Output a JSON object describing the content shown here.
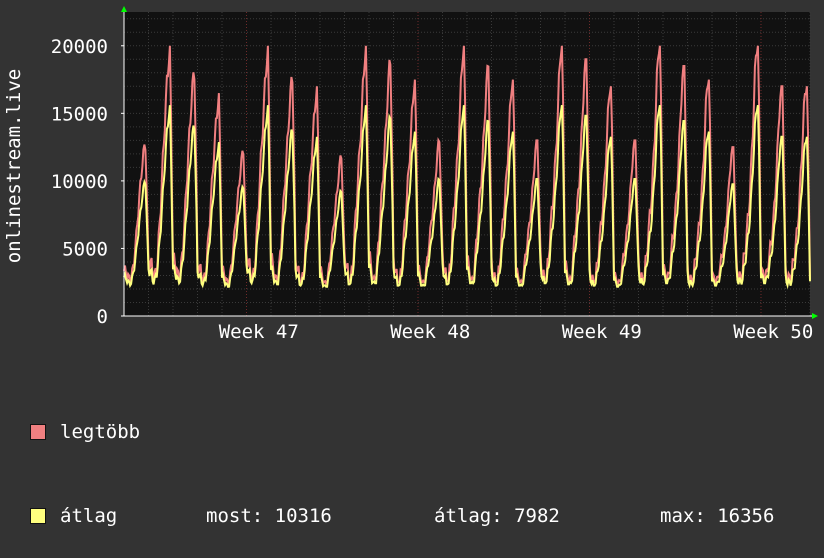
{
  "chart_data": {
    "type": "line",
    "ylabel": "onlinestream.live",
    "ylim": [
      0,
      22500
    ],
    "yticks": [
      0,
      5000,
      10000,
      15000,
      20000
    ],
    "ytick_labels": [
      "0",
      "5000",
      "10000",
      "15000",
      "20000"
    ],
    "xlim": [
      0,
      28
    ],
    "xticks": [
      {
        "label": "Week 47",
        "x": 5.5
      },
      {
        "label": "Week 48",
        "x": 12.5
      },
      {
        "label": "Week 49",
        "x": 19.5
      },
      {
        "label": "Week 50",
        "x": 26.5
      }
    ],
    "daily_peak_legtobb": [
      13000,
      20000,
      18500,
      16500,
      12500,
      20000,
      18000,
      17000,
      12000,
      20000,
      19000,
      17500,
      13000,
      20000,
      18500,
      17500,
      13000,
      20000,
      19000,
      17000,
      13000,
      20000,
      18500,
      17500,
      12500,
      20000,
      17000,
      17000
    ],
    "daily_min": [
      2500,
      2600,
      2700,
      2500,
      2400,
      2700,
      2600,
      2500,
      2400,
      2600,
      2700,
      2500,
      2500,
      2600,
      2700,
      2500,
      2500,
      2700,
      2600,
      2500,
      2400,
      2600,
      2700,
      2500,
      2500,
      2600,
      2700,
      2500
    ],
    "avg_ratio": 0.78,
    "grid": true,
    "series": [
      {
        "name": "legtöbb",
        "color": "#f07f80"
      },
      {
        "name": "átlag",
        "color": "#ffff7f"
      }
    ]
  },
  "legend": {
    "max_label": "legtöbb",
    "avg_label": "átlag",
    "stats": [
      {
        "label": "most:",
        "value": "10316"
      },
      {
        "label": "átlag:",
        "value": "7982"
      },
      {
        "label": "max:",
        "value": "16356"
      }
    ]
  },
  "colors": {
    "background": "#333333",
    "plot_background": "#111111",
    "grid": "#3a3a3a",
    "week_line": "#6e2a2a"
  }
}
